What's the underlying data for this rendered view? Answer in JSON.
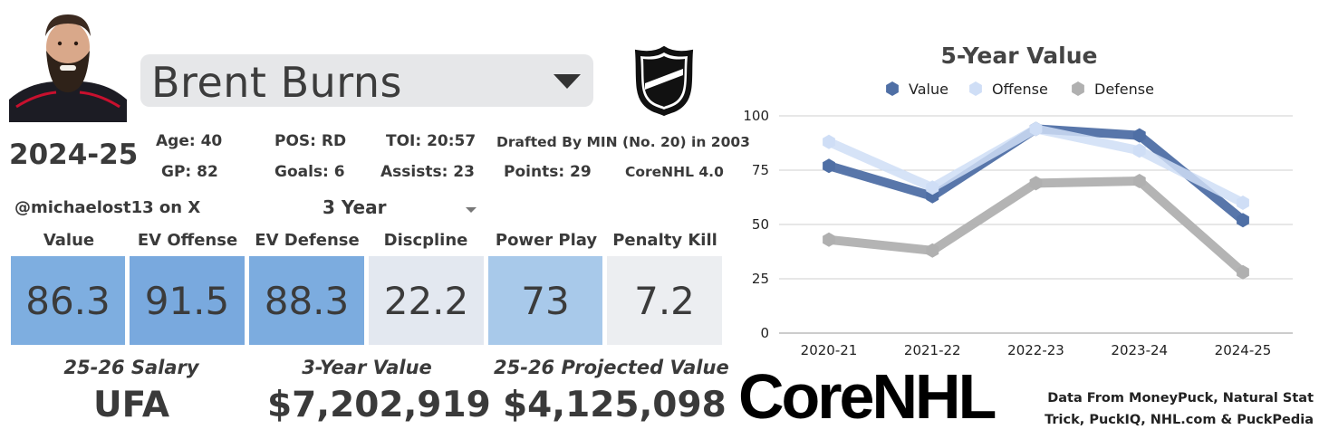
{
  "player": {
    "name": "Brent Burns",
    "season": "2024-25",
    "stats_row1": {
      "age": "Age: 40",
      "pos": "POS: RD",
      "toi": "TOI: 20:57",
      "draft": "Drafted By MIN (No. 20) in 2003"
    },
    "stats_row2": {
      "gp": "GP: 82",
      "goals": "Goals: 6",
      "assists": "Assists: 23",
      "points": "Points: 29",
      "model": "CoreNHL 4.0"
    }
  },
  "handle": "@michaelost13 on X",
  "years_select": {
    "value": "3 Year"
  },
  "metrics": [
    {
      "label": "Value",
      "value": "86.3",
      "color": "#7eaee0"
    },
    {
      "label": "EV Offense",
      "value": "91.5",
      "color": "#79a9de"
    },
    {
      "label": "EV Defense",
      "value": "88.3",
      "color": "#7cacdf"
    },
    {
      "label": "Discpline",
      "value": "22.2",
      "color": "#e3e8f0"
    },
    {
      "label": "Power Play",
      "value": "73",
      "color": "#a8c9ea"
    },
    {
      "label": "Penalty Kill",
      "value": "7.2",
      "color": "#eceef1"
    }
  ],
  "summary": {
    "salary_label": "25-26 Salary",
    "salary_value": "UFA",
    "three_year_label": "3-Year Value",
    "three_year_value": "$7,202,919",
    "projected_label": "25-26 Projected Value",
    "projected_value": "$4,125,098"
  },
  "brand": {
    "logo_text": "CoreNHL"
  },
  "credits": {
    "line1": "Data From MoneyPuck, Natural Stat",
    "line2": "Trick, PuckIQ, NHL.com & PuckPedia"
  },
  "chart_data": {
    "type": "line",
    "title": "5-Year Value",
    "categories": [
      "2020-21",
      "2021-22",
      "2022-23",
      "2023-24",
      "2024-25"
    ],
    "ylim": [
      0,
      100
    ],
    "yticks": [
      0,
      25,
      50,
      75,
      100
    ],
    "legend_position": "top",
    "series": [
      {
        "name": "Value",
        "values": [
          77,
          63,
          94,
          91,
          52
        ],
        "color": "#4f6fa5"
      },
      {
        "name": "Offense",
        "values": [
          88,
          67,
          94,
          84,
          60
        ],
        "color": "#cfdef6"
      },
      {
        "name": "Defense",
        "values": [
          43,
          38,
          69,
          70,
          28
        ],
        "color": "#b0b0b0"
      }
    ]
  }
}
